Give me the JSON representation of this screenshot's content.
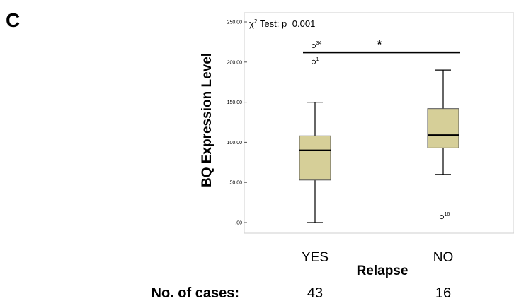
{
  "panel_letter": "C",
  "chart_data": {
    "type": "box",
    "title": "",
    "ylabel": "BQ Expression Level",
    "xlabel": "Relapse",
    "ylim": [
      -10,
      255
    ],
    "yticks": [
      0,
      50,
      100,
      150,
      200,
      250
    ],
    "ytick_labels": [
      ".00",
      "50.00",
      "100.00",
      "150.00",
      "200.00",
      "250.00"
    ],
    "categories": [
      "YES",
      "NO"
    ],
    "box_color": "#d6cf98",
    "boxes": [
      {
        "category": "YES",
        "min": 0,
        "q1": 53,
        "median": 90,
        "q3": 108,
        "max": 150,
        "outliers": [
          {
            "value": 200,
            "label": "1"
          },
          {
            "value": 220,
            "label": "34"
          }
        ]
      },
      {
        "category": "NO",
        "min": 60,
        "q1": 93,
        "median": 109,
        "q3": 142,
        "max": 190,
        "outliers": [
          {
            "value": 7,
            "label": "16"
          }
        ]
      }
    ],
    "annotation": {
      "test_prefix": "χ",
      "test_superscript": "2",
      "test_suffix": " Test: p=0.001",
      "significance": "*",
      "bar_value": 212
    }
  },
  "cases": {
    "label": "No. of cases:",
    "values": [
      "43",
      "16"
    ]
  }
}
